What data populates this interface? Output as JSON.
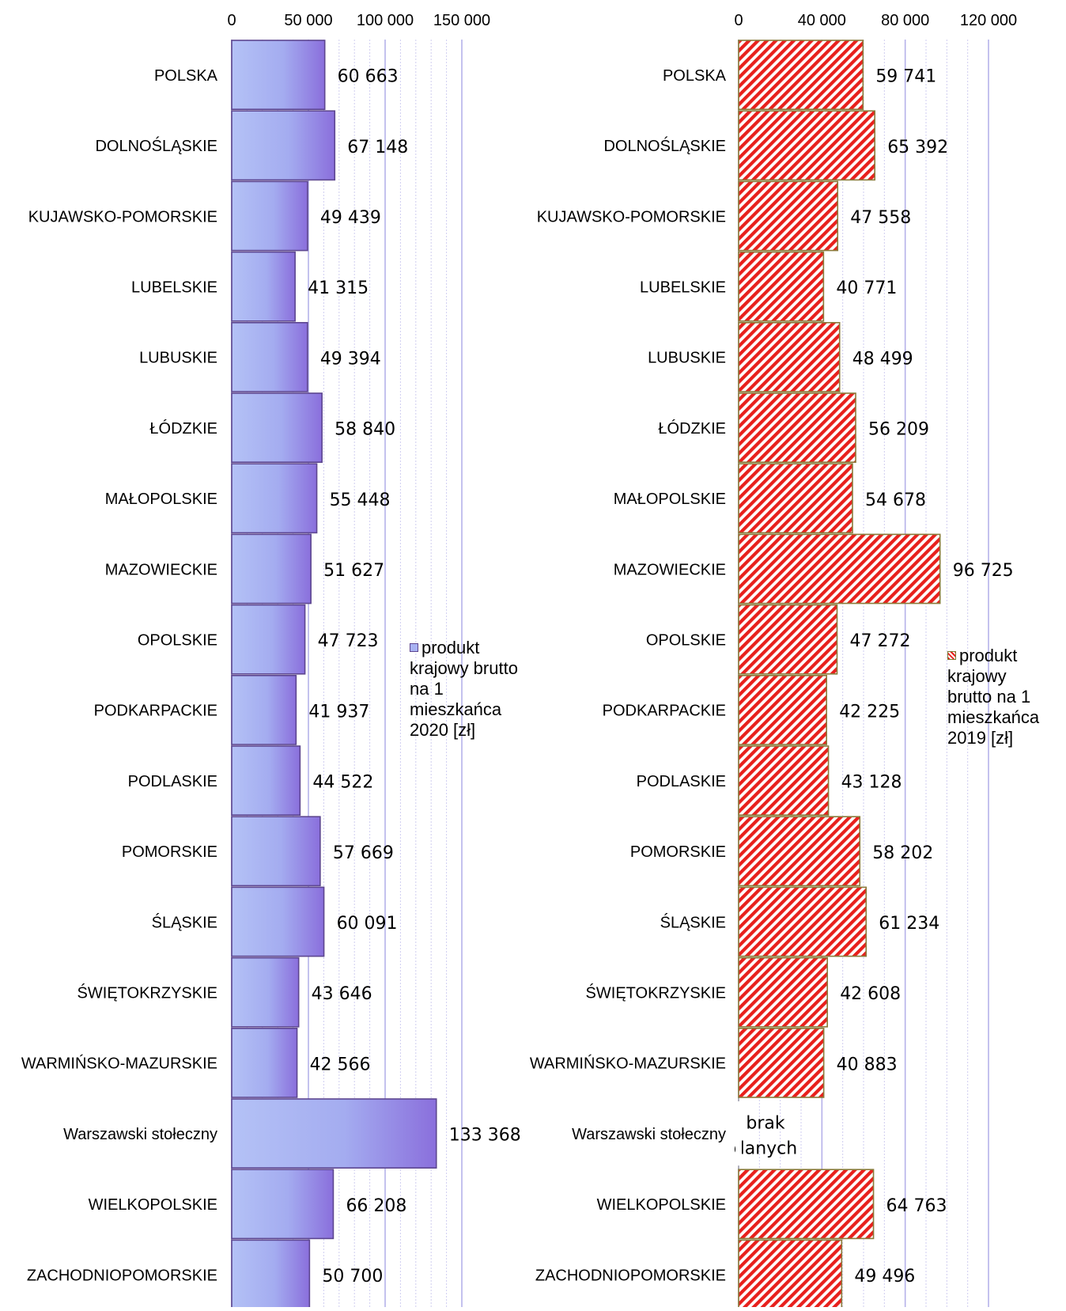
{
  "colors": {
    "bar2020_light": "#b0bcf5",
    "bar2020_dark": "#8e74e0",
    "bar2020_border": "#5d4690",
    "bar2019_red": "#e8201c",
    "bar2019_border": "#7a7a30",
    "gridline": "#c9c6ee",
    "gridline_major": "#b8b4ea"
  },
  "chart_data": [
    {
      "type": "bar",
      "orientation": "horizontal",
      "categories": [
        "POLSKA",
        "DOLNOŚLĄSKIE",
        "KUJAWSKO-POMORSKIE",
        "LUBELSKIE",
        "LUBUSKIE",
        "ŁÓDZKIE",
        "MAŁOPOLSKIE",
        "MAZOWIECKIE",
        "OPOLSKIE",
        "PODKARPACKIE",
        "PODLASKIE",
        "POMORSKIE",
        "ŚLĄSKIE",
        "ŚWIĘTOKRZYSKIE",
        "WARMIŃSKO-MAZURSKIE",
        "Warszawski stołeczny",
        "WIELKOPOLSKIE",
        "ZACHODNIOPOMORSKIE"
      ],
      "series": [
        {
          "name": "produkt krajowy brutto na 1 mieszkańca 2020 [zł]",
          "values": [
            60663,
            67148,
            49439,
            41315,
            49394,
            58840,
            55448,
            51627,
            47723,
            41937,
            44522,
            57669,
            60091,
            43646,
            42566,
            133368,
            66208,
            50700
          ],
          "value_labels": [
            "60 663",
            "67 148",
            "49 439",
            "41 315",
            "49 394",
            "58 840",
            "55 448",
            "51 627",
            "47 723",
            "41 937",
            "44 522",
            "57 669",
            "60 091",
            "43 646",
            "42 566",
            "133 368",
            "66 208",
            "50 700"
          ]
        }
      ],
      "xlim": [
        0,
        150000
      ],
      "ticks": [
        0,
        50000,
        100000,
        150000
      ],
      "tick_labels": [
        "0",
        "50 000",
        "100 000",
        "150 000"
      ],
      "axis_position": "top",
      "grid": true,
      "legend_position": "right",
      "legend_label": "produkt\nkrajowy brutto\nna 1\nmieszkańca\n2020 [zł]"
    },
    {
      "type": "bar",
      "orientation": "horizontal",
      "categories": [
        "POLSKA",
        "DOLNOŚLĄSKIE",
        "KUJAWSKO-POMORSKIE",
        "LUBELSKIE",
        "LUBUSKIE",
        "ŁÓDZKIE",
        "MAŁOPOLSKIE",
        "MAZOWIECKIE",
        "OPOLSKIE",
        "PODKARPACKIE",
        "PODLASKIE",
        "POMORSKIE",
        "ŚLĄSKIE",
        "ŚWIĘTOKRZYSKIE",
        "WARMIŃSKO-MAZURSKIE",
        "Warszawski stołeczny",
        "WIELKOPOLSKIE",
        "ZACHODNIOPOMORSKIE"
      ],
      "series": [
        {
          "name": "produkt krajowy brutto na 1 mieszkańca 2019 [zł]",
          "values": [
            59741,
            65392,
            47558,
            40771,
            48499,
            56209,
            54678,
            96725,
            47272,
            42225,
            43128,
            58202,
            61234,
            42608,
            40883,
            null,
            64763,
            49496
          ],
          "value_labels": [
            "59 741",
            "65 392",
            "47 558",
            "40 771",
            "48 499",
            "56 209",
            "54 678",
            "96 725",
            "47 272",
            "42 225",
            "43 128",
            "58 202",
            "61 234",
            "42 608",
            "40 883",
            "brak\ndanych",
            "64 763",
            "49 496"
          ]
        }
      ],
      "xlim": [
        0,
        120000
      ],
      "ticks": [
        0,
        40000,
        80000,
        120000
      ],
      "tick_labels": [
        "0",
        "40 000",
        "80 000",
        "120 000"
      ],
      "axis_position": "top",
      "grid": true,
      "legend_position": "right",
      "legend_label": "produkt\nkrajowy\nbrutto na 1\nmieszkańca\n2019 [zł]"
    }
  ]
}
